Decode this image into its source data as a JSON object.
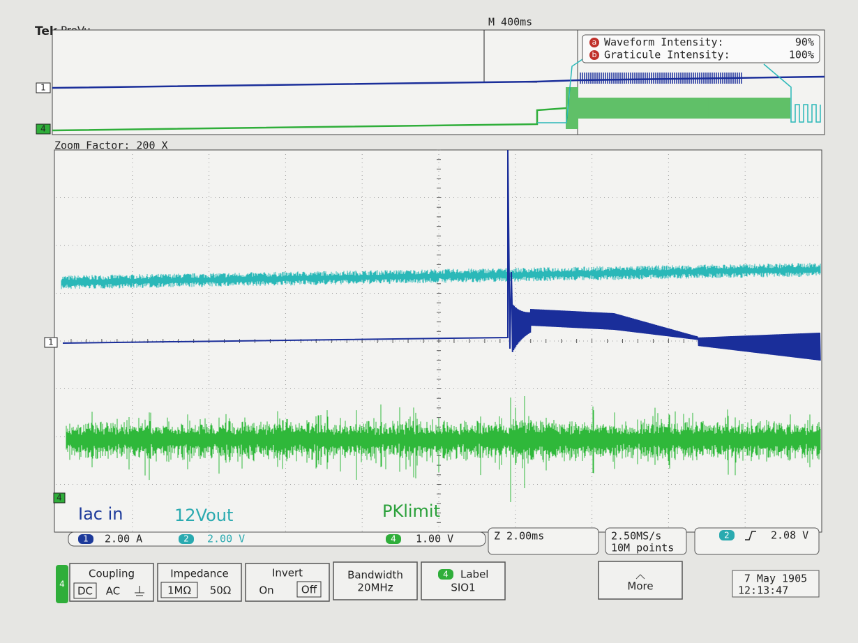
{
  "header": {
    "brand": "Tek",
    "mode": "PreVu",
    "timebase": "M 400ms"
  },
  "intensity": {
    "rows": [
      {
        "badge": "a",
        "label": "Waveform Intensity:",
        "value": "90%"
      },
      {
        "badge": "b",
        "label": "Graticule Intensity:",
        "value": "100%"
      }
    ]
  },
  "overview": {
    "markers": [
      "1",
      "4"
    ]
  },
  "zoom": "Zoom Factor: 200 X",
  "main": {
    "marker_ch1": "1",
    "marker_ch4": "4",
    "labels": [
      "Iac in",
      "12Vout",
      "PKlimit"
    ]
  },
  "status": {
    "ch1": {
      "num": "1",
      "scale": "2.00 A"
    },
    "ch2": {
      "num": "2",
      "scale": "2.00 V"
    },
    "ch4": {
      "num": "4",
      "scale": "1.00 V"
    },
    "zoom": "Z 2.00ms",
    "rate": "2.50MS/s",
    "points": "10M points",
    "trigger": {
      "num": "2",
      "level": "2.08 V"
    }
  },
  "menu": {
    "channel": "4",
    "coupling": {
      "title": "Coupling",
      "options": [
        "DC",
        "AC"
      ]
    },
    "impedance": {
      "title": "Impedance",
      "options": [
        "1MΩ",
        "50Ω"
      ]
    },
    "invert": {
      "title": "Invert",
      "options": [
        "On",
        "Off"
      ]
    },
    "bandwidth": {
      "title": "Bandwidth",
      "value": "20MHz"
    },
    "label": {
      "channel": "4",
      "title": "Label",
      "value": "SIO1"
    },
    "more": "More"
  },
  "datetime": {
    "date": "7 May 1905",
    "time": "12:13:47"
  }
}
